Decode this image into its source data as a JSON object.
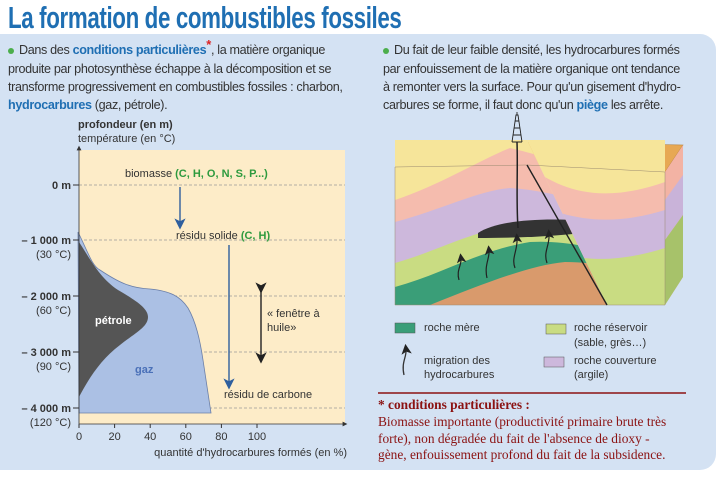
{
  "title": "La formation de combustibles fossiles",
  "left_text": {
    "l1_a": "Dans des ",
    "l1_b": "conditions particulières",
    "l1_star": "*",
    "l1_c": ", la matière organique",
    "l2": "produite par photosynthèse échappe à la décomposition et se",
    "l3": "transforme progressivement en combustibles fossiles : charbon,",
    "l4_a": "hydrocarbures",
    "l4_b": " (gaz, pétrole)."
  },
  "right_text": {
    "l1": "Du fait de leur faible densité, les hydrocarbures formés",
    "l2": "par enfouissement de la matière organique ont tendance",
    "l3": "à remonter vers la surface. Pour qu'un gisement d'hydro-",
    "l4_a": "carbures se forme, il faut donc qu'un ",
    "l4_b": "piège",
    "l4_c": " les arrête."
  },
  "graph": {
    "ylabel1": "profondeur (en m)",
    "ylabel2": "température (en °C)",
    "y_ticks": [
      {
        "depth": "0 m",
        "temp": ""
      },
      {
        "depth": "– 1 000 m",
        "temp": "(30 °C)"
      },
      {
        "depth": "– 2 000 m",
        "temp": "(60 °C)"
      },
      {
        "depth": "– 3 000 m",
        "temp": "(90 °C)"
      },
      {
        "depth": "– 4 000 m",
        "temp": "(120 °C)"
      }
    ],
    "x_ticks": [
      "0",
      "20",
      "40",
      "60",
      "80",
      "100"
    ],
    "xlabel": "quantité d'hydrocarbures formés (en %)",
    "biomasse": "biomasse ",
    "biomasse_elems": "(C, H, O, N, S, P...)",
    "residu_solide": "résidu solide ",
    "residu_solide_elems": "(C, H)",
    "residu_carbone": "résidu de carbone",
    "petrole": "pétrole",
    "gaz": "gaz",
    "fenetre1": "« fenêtre à",
    "fenetre2": "huile»"
  },
  "legend": {
    "roche_mere": "roche mère",
    "migration1": "migration des",
    "migration2": "hydrocarbures",
    "reservoir1": "roche réservoir",
    "reservoir2": "(sable, grès…)",
    "couverture1": "roche couverture",
    "couverture2": "(argile)"
  },
  "note": {
    "heading": "*  conditions particulières :",
    "l1": "Biomasse importante (productivité primaire brute très",
    "l2": "forte), non dégradée du fait de l'absence de dioxy -",
    "l3": "gène, enfouissement profond du fait de la subsidence."
  },
  "colors": {
    "title": "#1f6fb3",
    "note": "#8b1212",
    "panel": "#d4e2f3"
  }
}
